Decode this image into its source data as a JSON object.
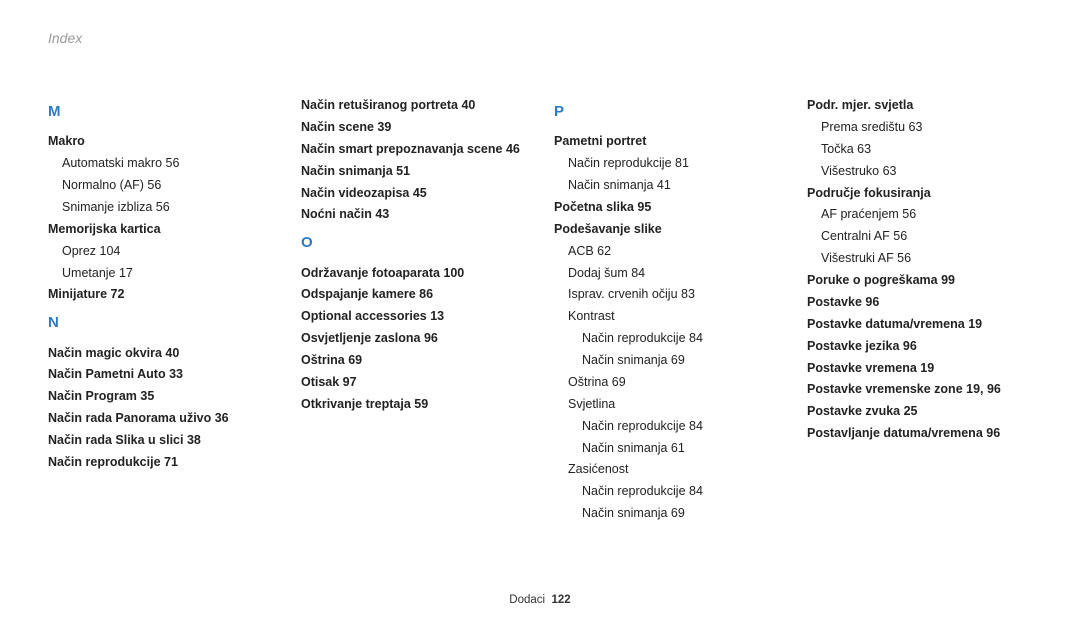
{
  "header": "Index",
  "footer_label": "Dodaci",
  "footer_page": "122",
  "accent_color": "#2b7bc4",
  "columns": [
    [
      {
        "type": "letter",
        "text": "M"
      },
      {
        "type": "bold",
        "text": "Makro"
      },
      {
        "type": "sub",
        "text": "Automatski makro  56"
      },
      {
        "type": "sub",
        "text": "Normalno (AF)  56"
      },
      {
        "type": "sub",
        "text": "Snimanje izbliza  56"
      },
      {
        "type": "bold",
        "text": "Memorijska kartica"
      },
      {
        "type": "sub",
        "text": "Oprez  104"
      },
      {
        "type": "sub",
        "text": "Umetanje  17"
      },
      {
        "type": "bold",
        "text": "Minijature  72"
      },
      {
        "type": "letter",
        "text": "N"
      },
      {
        "type": "bold",
        "text": "Način magic okvira  40"
      },
      {
        "type": "bold",
        "text": "Način Pametni Auto  33"
      },
      {
        "type": "bold",
        "text": "Način Program  35"
      },
      {
        "type": "bold",
        "text": "Način rada Panorama uživo  36"
      },
      {
        "type": "bold",
        "text": "Način rada Slika u slici  38"
      },
      {
        "type": "bold",
        "text": "Način reprodukcije  71"
      }
    ],
    [
      {
        "type": "bold",
        "text": "Način retuširanog portreta  40"
      },
      {
        "type": "bold",
        "text": "Način scene  39"
      },
      {
        "type": "bold",
        "text": "Način smart prepoznavanja scene  46"
      },
      {
        "type": "bold",
        "text": "Način snimanja  51"
      },
      {
        "type": "bold",
        "text": "Način videozapisa  45"
      },
      {
        "type": "bold",
        "text": "Noćni način  43"
      },
      {
        "type": "letter",
        "text": "O"
      },
      {
        "type": "bold",
        "text": "Održavanje fotoaparata  100"
      },
      {
        "type": "bold",
        "text": "Odspajanje kamere  86"
      },
      {
        "type": "bold",
        "text": "Optional accessories  13"
      },
      {
        "type": "bold",
        "text": "Osvjetljenje zaslona  96"
      },
      {
        "type": "bold",
        "text": "Oštrina  69"
      },
      {
        "type": "bold",
        "text": "Otisak  97"
      },
      {
        "type": "bold",
        "text": "Otkrivanje treptaja  59"
      }
    ],
    [
      {
        "type": "letter",
        "text": "P"
      },
      {
        "type": "bold",
        "text": "Pametni portret"
      },
      {
        "type": "sub",
        "text": "Način reprodukcije  81"
      },
      {
        "type": "sub",
        "text": "Način snimanja  41"
      },
      {
        "type": "bold",
        "text": "Početna slika  95"
      },
      {
        "type": "bold",
        "text": "Podešavanje slike"
      },
      {
        "type": "sub",
        "text": "ACB  62"
      },
      {
        "type": "sub",
        "text": "Dodaj šum  84"
      },
      {
        "type": "sub",
        "text": "Isprav. crvenih očiju  83"
      },
      {
        "type": "sub",
        "text": "Kontrast"
      },
      {
        "type": "sub2",
        "text": "Način reprodukcije  84"
      },
      {
        "type": "sub2",
        "text": "Način snimanja  69"
      },
      {
        "type": "sub",
        "text": "Oštrina  69"
      },
      {
        "type": "sub",
        "text": "Svjetlina"
      },
      {
        "type": "sub2",
        "text": "Način reprodukcije  84"
      },
      {
        "type": "sub2",
        "text": "Način snimanja  61"
      },
      {
        "type": "sub",
        "text": "Zasićenost"
      },
      {
        "type": "sub2",
        "text": "Način reprodukcije  84"
      },
      {
        "type": "sub2",
        "text": "Način snimanja  69"
      }
    ],
    [
      {
        "type": "bold",
        "text": "Podr. mjer. svjetla"
      },
      {
        "type": "sub",
        "text": "Prema središtu  63"
      },
      {
        "type": "sub",
        "text": "Točka  63"
      },
      {
        "type": "sub",
        "text": "Višestruko  63"
      },
      {
        "type": "bold",
        "text": "Područje fokusiranja"
      },
      {
        "type": "sub",
        "text": "AF praćenjem  56"
      },
      {
        "type": "sub",
        "text": "Centralni AF  56"
      },
      {
        "type": "sub",
        "text": "Višestruki AF  56"
      },
      {
        "type": "bold",
        "text": "Poruke o pogreškama  99"
      },
      {
        "type": "bold",
        "text": "Postavke  96"
      },
      {
        "type": "bold",
        "text": "Postavke datuma/vremena  19"
      },
      {
        "type": "bold",
        "text": "Postavke jezika  96"
      },
      {
        "type": "bold",
        "text": "Postavke vremena  19"
      },
      {
        "type": "bold",
        "text": "Postavke vremenske zone  19, 96"
      },
      {
        "type": "bold",
        "text": "Postavke zvuka  25"
      },
      {
        "type": "bold",
        "text": "Postavljanje datuma/vremena  96"
      }
    ]
  ]
}
